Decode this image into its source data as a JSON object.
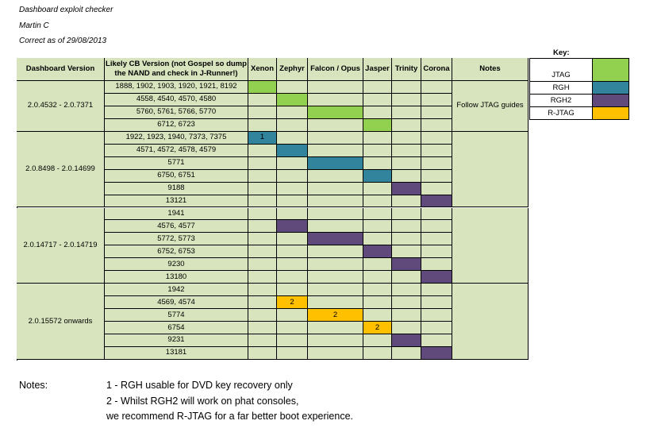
{
  "header": {
    "title": "Dashboard exploit checker",
    "author": "Martin C",
    "date_line": "Correct as of 29/08/2013"
  },
  "colors": {
    "cell_bg": "#d7e4bd",
    "JTAG": "#92d050",
    "RGH": "#31849b",
    "RGH2": "#604a7b",
    "R-JTAG": "#ffc000"
  },
  "table": {
    "columns": [
      "Dashboard Version",
      "Likely CB Version (not Gospel so dump the NAND and check in J-Runner!)",
      "Xenon",
      "Zephyr",
      "Falcon / Opus",
      "Jasper",
      "Trinity",
      "Corona",
      "Notes"
    ],
    "consoles": [
      "Xenon",
      "Zephyr",
      "Falcon / Opus",
      "Jasper",
      "Trinity",
      "Corona"
    ],
    "groups": [
      {
        "dashboard": "2.0.4532 - 2.0.7371",
        "note": "Follow JTAG guides",
        "rows": [
          {
            "cb": "1888, 1902, 1903, 1920, 1921, 8192",
            "cells": [
              {
                "col": 0,
                "type": "JTAG",
                "label": ""
              }
            ]
          },
          {
            "cb": "4558, 4540, 4570, 4580",
            "cells": [
              {
                "col": 1,
                "type": "JTAG",
                "label": ""
              }
            ]
          },
          {
            "cb": "5760, 5761, 5766, 5770",
            "cells": [
              {
                "col": 2,
                "type": "JTAG",
                "label": ""
              }
            ]
          },
          {
            "cb": "6712, 6723",
            "cells": [
              {
                "col": 3,
                "type": "JTAG",
                "label": ""
              }
            ]
          }
        ]
      },
      {
        "dashboard": "2.0.8498 - 2.0.14699",
        "note": "",
        "rows": [
          {
            "cb": "1922, 1923, 1940, 7373, 7375",
            "cells": [
              {
                "col": 0,
                "type": "RGH",
                "label": "1"
              }
            ]
          },
          {
            "cb": "4571, 4572, 4578, 4579",
            "cells": [
              {
                "col": 1,
                "type": "RGH",
                "label": ""
              }
            ]
          },
          {
            "cb": "5771",
            "cells": [
              {
                "col": 2,
                "type": "RGH",
                "label": ""
              }
            ]
          },
          {
            "cb": "6750, 6751",
            "cells": [
              {
                "col": 3,
                "type": "RGH",
                "label": ""
              }
            ]
          },
          {
            "cb": "9188",
            "cells": [
              {
                "col": 4,
                "type": "RGH2",
                "label": ""
              }
            ]
          },
          {
            "cb": "13121",
            "cells": [
              {
                "col": 5,
                "type": "RGH2",
                "label": ""
              }
            ]
          }
        ]
      },
      {
        "dashboard": "2.0.14717 - 2.0.14719",
        "note": "",
        "rows": [
          {
            "cb": "1941",
            "cells": []
          },
          {
            "cb": "4576, 4577",
            "cells": [
              {
                "col": 1,
                "type": "RGH2",
                "label": ""
              }
            ]
          },
          {
            "cb": "5772, 5773",
            "cells": [
              {
                "col": 2,
                "type": "RGH2",
                "label": ""
              }
            ]
          },
          {
            "cb": "6752, 6753",
            "cells": [
              {
                "col": 3,
                "type": "RGH2",
                "label": ""
              }
            ]
          },
          {
            "cb": "9230",
            "cells": [
              {
                "col": 4,
                "type": "RGH2",
                "label": ""
              }
            ]
          },
          {
            "cb": "13180",
            "cells": [
              {
                "col": 5,
                "type": "RGH2",
                "label": ""
              }
            ]
          }
        ]
      },
      {
        "dashboard": "2.0.15572 onwards",
        "note": "",
        "rows": [
          {
            "cb": "1942",
            "cells": []
          },
          {
            "cb": "4569, 4574",
            "cells": [
              {
                "col": 1,
                "type": "R-JTAG",
                "label": "2"
              }
            ]
          },
          {
            "cb": "5774",
            "cells": [
              {
                "col": 2,
                "type": "R-JTAG",
                "label": "2"
              }
            ]
          },
          {
            "cb": "6754",
            "cells": [
              {
                "col": 3,
                "type": "R-JTAG",
                "label": "2"
              }
            ]
          },
          {
            "cb": "9231",
            "cells": [
              {
                "col": 4,
                "type": "RGH2",
                "label": ""
              }
            ]
          },
          {
            "cb": "13181",
            "cells": [
              {
                "col": 5,
                "type": "RGH2",
                "label": ""
              }
            ]
          }
        ]
      }
    ]
  },
  "key": {
    "title": "Key:",
    "items": [
      {
        "label": "JTAG",
        "type": "JTAG"
      },
      {
        "label": "RGH",
        "type": "RGH"
      },
      {
        "label": "RGH2",
        "type": "RGH2"
      },
      {
        "label": "R-JTAG",
        "type": "R-JTAG"
      }
    ]
  },
  "notes": {
    "heading": "Notes:",
    "lines": [
      "1 - RGH usable for DVD key recovery only",
      "2 - Whilst RGH2 will work on phat consoles,",
      "we recommend R-JTAG for a far better boot experience."
    ]
  }
}
